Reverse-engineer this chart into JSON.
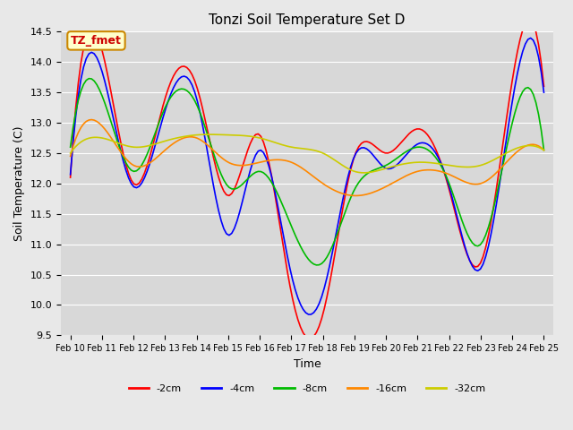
{
  "title": "Tonzi Soil Temperature Set D",
  "xlabel": "Time",
  "ylabel": "Soil Temperature (C)",
  "ylim": [
    9.5,
    14.5
  ],
  "background_color": "#e8e8e8",
  "plot_bg_color": "#d8d8d8",
  "annotation_text": "TZ_fmet",
  "annotation_color": "#cc0000",
  "annotation_bg": "#ffffcc",
  "annotation_border": "#cc8800",
  "legend_labels": [
    "-2cm",
    "-4cm",
    "-8cm",
    "-16cm",
    "-32cm"
  ],
  "legend_colors": [
    "#ff0000",
    "#0000ff",
    "#00bb00",
    "#ff8800",
    "#cccc00"
  ],
  "line_colors": [
    "#ff0000",
    "#0000ff",
    "#00bb00",
    "#ff8800",
    "#cccc00"
  ],
  "days": [
    "Feb 10",
    "Feb 11",
    "Feb 12",
    "Feb 13",
    "Feb 14",
    "Feb 15",
    "Feb 16",
    "Feb 17",
    "Feb 18",
    "Feb 19",
    "Feb 20",
    "Feb 21",
    "Feb 22",
    "Feb 23",
    "Feb 24",
    "Feb 25"
  ],
  "n_points": 16,
  "data_2cm": [
    12.1,
    14.2,
    12.0,
    13.4,
    13.6,
    11.8,
    12.8,
    10.2,
    9.85,
    12.45,
    12.5,
    12.9,
    11.9,
    10.7,
    13.7,
    13.6
  ],
  "data_4cm": [
    12.15,
    13.85,
    11.95,
    13.2,
    13.4,
    11.15,
    12.55,
    10.5,
    10.2,
    12.45,
    12.25,
    12.65,
    11.95,
    10.6,
    13.35,
    13.5
  ],
  "data_8cm": [
    12.6,
    13.45,
    12.2,
    13.25,
    13.3,
    11.95,
    12.2,
    11.3,
    10.7,
    11.9,
    12.3,
    12.6,
    12.0,
    11.0,
    13.0,
    12.55
  ],
  "data_16cm": [
    12.45,
    12.95,
    12.3,
    12.55,
    12.75,
    12.35,
    12.35,
    12.35,
    12.0,
    11.8,
    11.95,
    12.2,
    12.15,
    12.0,
    12.45,
    12.55
  ],
  "data_32cm": [
    12.5,
    12.75,
    12.6,
    12.7,
    12.8,
    12.8,
    12.75,
    12.6,
    12.5,
    12.2,
    12.25,
    12.35,
    12.3,
    12.3,
    12.55,
    12.55
  ]
}
